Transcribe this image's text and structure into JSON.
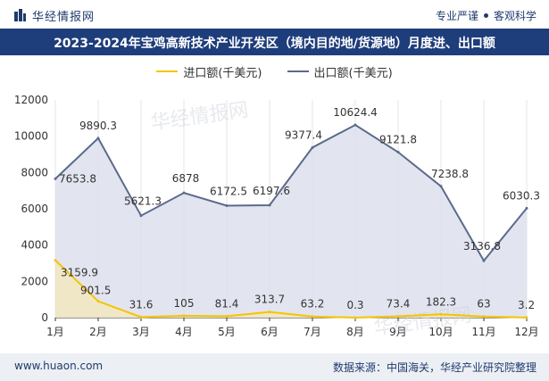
{
  "header": {
    "logo_text": "华经情报网",
    "tagline_left": "专业严谨",
    "tagline_right": "客观科学"
  },
  "title": "2023-2024年宝鸡高新技术产业开发区（境内目的地/货源地）月度进、出口额",
  "footer": {
    "website": "www.huaon.com",
    "source": "数据来源：中国海关，华经产业研究院整理"
  },
  "colors": {
    "import": "#f5c400",
    "export": "#5b6a8c",
    "area": "#dde1ec",
    "title_bg": "#1e3d7b"
  },
  "chart_data": {
    "type": "line",
    "categories": [
      "1月",
      "2月",
      "3月",
      "4月",
      "5月",
      "6月",
      "7月",
      "8月",
      "9月",
      "10月",
      "11月",
      "12月"
    ],
    "series": [
      {
        "name": "进口额(千美元)",
        "values": [
          3159.9,
          901.5,
          31.6,
          105,
          81.4,
          313.7,
          63.2,
          0.3,
          73.4,
          182.3,
          63,
          3.2
        ],
        "labels": [
          "3159.9",
          "901.5",
          "31.6",
          "105",
          "81.4",
          "313.7",
          "63.2",
          "0.3",
          "73.4",
          "182.3",
          "63",
          "3.2"
        ]
      },
      {
        "name": "出口额(千美元)",
        "values": [
          7653.8,
          9890.3,
          5621.3,
          6878,
          6172.5,
          6197.6,
          9377.4,
          10624.4,
          9121.8,
          7238.8,
          3136.8,
          6030.3
        ],
        "labels": [
          "7653.8",
          "9890.3",
          "5621.3",
          "6878",
          "6172.5",
          "6197.6",
          "9377.4",
          "10624.4",
          "9121.8",
          "7238.8",
          "3136.8",
          "6030.3"
        ]
      }
    ],
    "y_ticks": [
      "0",
      "2000",
      "4000",
      "6000",
      "8000",
      "10000",
      "12000"
    ],
    "ylim": [
      0,
      12000
    ],
    "legend_position": "top-center",
    "grid": "vertical"
  }
}
